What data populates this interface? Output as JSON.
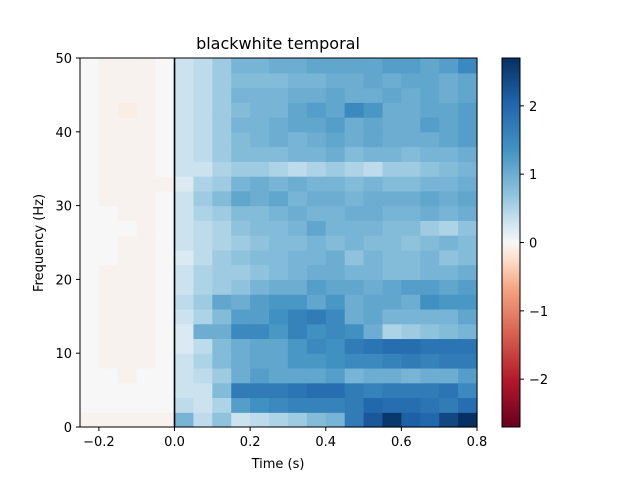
{
  "chart_data": {
    "type": "heatmap",
    "title": "blackwhite temporal",
    "xlabel": "Time (s)",
    "ylabel": "Frequency (Hz)",
    "xlim": [
      -0.25,
      0.8
    ],
    "ylim": [
      0,
      50
    ],
    "xticks": [
      -0.2,
      0.0,
      0.2,
      0.4,
      0.6,
      0.8
    ],
    "xtick_labels": [
      "−0.2",
      "0.0",
      "0.2",
      "0.4",
      "0.6",
      "0.8"
    ],
    "yticks": [
      0,
      10,
      20,
      30,
      40,
      50
    ],
    "ytick_labels": [
      "0",
      "10",
      "20",
      "30",
      "40",
      "50"
    ],
    "colorbar": {
      "colormap": "RdBu_r",
      "vmin": -2.7,
      "vmax": 2.7,
      "ticks": [
        -2,
        -1,
        0,
        1,
        2
      ],
      "tick_labels": [
        "−2",
        "−1",
        "0",
        "1",
        "2"
      ]
    },
    "event_marker_x": 0.0,
    "x_edges": [
      -0.25,
      -0.2,
      -0.15,
      -0.1,
      -0.05,
      0.0,
      0.05,
      0.1,
      0.15,
      0.2,
      0.25,
      0.3,
      0.35,
      0.4,
      0.45,
      0.5,
      0.55,
      0.6,
      0.65,
      0.7,
      0.75,
      0.8
    ],
    "y_edges": [
      0,
      2,
      4,
      6,
      8,
      10,
      12,
      14,
      16,
      18,
      20,
      22,
      24,
      26,
      28,
      30,
      32,
      34,
      36,
      38,
      40,
      42,
      44,
      46,
      48,
      50
    ],
    "values": [
      [
        -0.05,
        -0.05,
        -0.05,
        -0.05,
        -0.05,
        0.9,
        0.4,
        0.7,
        0.3,
        0.4,
        0.5,
        0.6,
        0.8,
        0.9,
        1.7,
        2.2,
        2.6,
        2.1,
        2.0,
        2.4,
        2.7
      ],
      [
        0.0,
        0.0,
        0.0,
        0.0,
        0.0,
        0.4,
        0.3,
        0.5,
        1.2,
        1.4,
        1.5,
        1.6,
        1.6,
        1.6,
        1.7,
        2.0,
        1.9,
        1.9,
        1.8,
        1.7,
        1.9
      ],
      [
        0.0,
        0.0,
        0.0,
        0.0,
        0.0,
        0.3,
        0.3,
        0.8,
        1.7,
        1.7,
        1.7,
        1.8,
        1.9,
        1.9,
        1.7,
        1.6,
        1.7,
        1.7,
        1.7,
        1.8,
        1.5
      ],
      [
        0.0,
        0.0,
        -0.05,
        0.0,
        0.0,
        0.3,
        0.4,
        0.6,
        1.0,
        1.2,
        1.1,
        1.1,
        1.1,
        1.2,
        0.9,
        1.0,
        1.0,
        0.9,
        1.0,
        1.0,
        1.2
      ],
      [
        0.0,
        -0.05,
        -0.05,
        -0.05,
        0.0,
        0.3,
        0.5,
        0.8,
        1.0,
        1.1,
        1.1,
        1.3,
        1.3,
        1.4,
        1.5,
        1.5,
        1.6,
        1.7,
        1.6,
        1.7,
        1.7
      ],
      [
        0.0,
        -0.05,
        -0.05,
        -0.05,
        0.0,
        0.2,
        0.4,
        0.8,
        1.0,
        1.1,
        1.1,
        1.3,
        1.5,
        1.4,
        1.7,
        1.8,
        1.9,
        1.9,
        1.8,
        1.8,
        1.8
      ],
      [
        0.0,
        -0.05,
        -0.05,
        -0.05,
        0.0,
        0.2,
        1.0,
        1.0,
        1.5,
        1.5,
        1.3,
        1.6,
        1.4,
        1.5,
        1.4,
        1.0,
        0.5,
        0.6,
        0.7,
        0.8,
        0.9
      ],
      [
        0.0,
        -0.05,
        -0.05,
        -0.05,
        0.0,
        0.3,
        0.5,
        0.8,
        1.2,
        1.2,
        1.4,
        1.6,
        1.7,
        1.5,
        1.0,
        1.1,
        0.9,
        0.9,
        0.9,
        0.9,
        1.1
      ],
      [
        0.0,
        -0.05,
        -0.05,
        -0.05,
        0.0,
        0.4,
        0.6,
        1.1,
        1.0,
        1.2,
        1.3,
        1.3,
        1.1,
        1.3,
        1.0,
        1.1,
        1.1,
        1.0,
        1.4,
        1.3,
        1.3
      ],
      [
        0.0,
        -0.05,
        -0.05,
        -0.05,
        0.0,
        0.3,
        0.5,
        0.6,
        0.7,
        0.9,
        1.0,
        1.0,
        1.2,
        1.1,
        1.1,
        1.0,
        1.1,
        1.2,
        1.2,
        1.1,
        1.2
      ],
      [
        0.0,
        -0.05,
        -0.05,
        -0.05,
        0.0,
        0.3,
        0.5,
        0.6,
        0.6,
        0.7,
        0.8,
        0.9,
        1.0,
        1.0,
        0.9,
        0.9,
        0.8,
        0.8,
        0.9,
        0.9,
        1.0
      ],
      [
        0.0,
        0.0,
        -0.05,
        -0.05,
        0.0,
        0.2,
        0.4,
        0.6,
        0.7,
        0.8,
        0.8,
        0.9,
        0.9,
        1.0,
        0.7,
        0.9,
        0.8,
        0.8,
        0.9,
        0.7,
        0.8
      ],
      [
        0.0,
        0.0,
        -0.05,
        -0.05,
        0.0,
        0.3,
        0.4,
        0.5,
        0.6,
        0.7,
        0.8,
        0.8,
        0.9,
        0.8,
        0.9,
        0.8,
        0.8,
        0.7,
        0.8,
        0.9,
        0.8
      ],
      [
        0.0,
        0.0,
        0.0,
        -0.05,
        0.0,
        0.3,
        0.4,
        0.5,
        0.7,
        0.8,
        0.8,
        0.9,
        1.1,
        0.9,
        0.9,
        0.9,
        0.8,
        0.8,
        0.6,
        0.5,
        0.7
      ],
      [
        0.0,
        0.0,
        -0.05,
        -0.05,
        0.0,
        0.3,
        0.5,
        0.6,
        0.8,
        0.8,
        0.9,
        1.0,
        0.9,
        0.9,
        1.0,
        1.0,
        0.9,
        0.9,
        1.0,
        0.9,
        1.0
      ],
      [
        0.0,
        -0.05,
        -0.05,
        -0.05,
        0.0,
        0.3,
        0.6,
        0.8,
        1.1,
        1.0,
        1.1,
        0.9,
        1.0,
        1.0,
        0.9,
        1.0,
        1.0,
        1.0,
        1.1,
        1.0,
        1.1
      ],
      [
        0.0,
        -0.05,
        -0.05,
        -0.05,
        -0.05,
        0.2,
        0.5,
        0.6,
        0.9,
        1.0,
        0.9,
        1.0,
        0.9,
        0.9,
        0.8,
        0.9,
        0.8,
        0.8,
        0.9,
        0.9,
        1.0
      ],
      [
        0.0,
        -0.05,
        -0.05,
        -0.05,
        0.0,
        0.3,
        0.3,
        0.5,
        0.6,
        0.6,
        0.5,
        0.4,
        0.5,
        0.6,
        0.5,
        0.4,
        0.6,
        0.6,
        0.7,
        0.8,
        0.9
      ],
      [
        0.0,
        -0.05,
        -0.05,
        -0.05,
        0.0,
        0.3,
        0.4,
        0.6,
        0.8,
        0.8,
        0.8,
        0.9,
        0.9,
        1.0,
        0.8,
        0.9,
        0.9,
        0.8,
        0.9,
        0.9,
        1.0
      ],
      [
        0.0,
        -0.05,
        -0.05,
        -0.05,
        0.0,
        0.3,
        0.4,
        0.6,
        0.8,
        0.9,
        1.0,
        0.9,
        1.0,
        1.1,
        1.0,
        1.1,
        1.0,
        1.0,
        1.0,
        1.1,
        1.2
      ],
      [
        0.0,
        -0.05,
        -0.05,
        -0.05,
        0.0,
        0.3,
        0.4,
        0.6,
        0.9,
        0.9,
        1.0,
        1.1,
        1.1,
        1.2,
        1.0,
        1.1,
        1.0,
        1.0,
        1.2,
        1.1,
        1.2
      ],
      [
        0.0,
        -0.05,
        -0.1,
        -0.05,
        0.0,
        0.3,
        0.4,
        0.6,
        0.8,
        0.9,
        0.9,
        1.1,
        1.2,
        1.1,
        1.5,
        1.3,
        1.0,
        1.0,
        1.1,
        1.1,
        1.2
      ],
      [
        0.0,
        -0.05,
        -0.05,
        -0.05,
        0.0,
        0.3,
        0.4,
        0.6,
        0.9,
        0.9,
        0.9,
        1.0,
        1.0,
        1.1,
        1.0,
        1.0,
        1.1,
        1.0,
        1.1,
        1.0,
        1.1
      ],
      [
        0.0,
        -0.05,
        -0.05,
        -0.05,
        0.0,
        0.3,
        0.4,
        0.6,
        0.8,
        0.8,
        0.8,
        0.9,
        0.9,
        1.0,
        1.0,
        1.1,
        1.0,
        1.1,
        1.1,
        1.0,
        1.1
      ],
      [
        0.0,
        -0.05,
        -0.05,
        -0.05,
        0.0,
        0.3,
        0.4,
        0.6,
        0.9,
        0.9,
        1.0,
        1.0,
        1.1,
        1.1,
        1.1,
        1.1,
        1.2,
        1.2,
        1.1,
        1.2,
        1.5
      ]
    ]
  }
}
